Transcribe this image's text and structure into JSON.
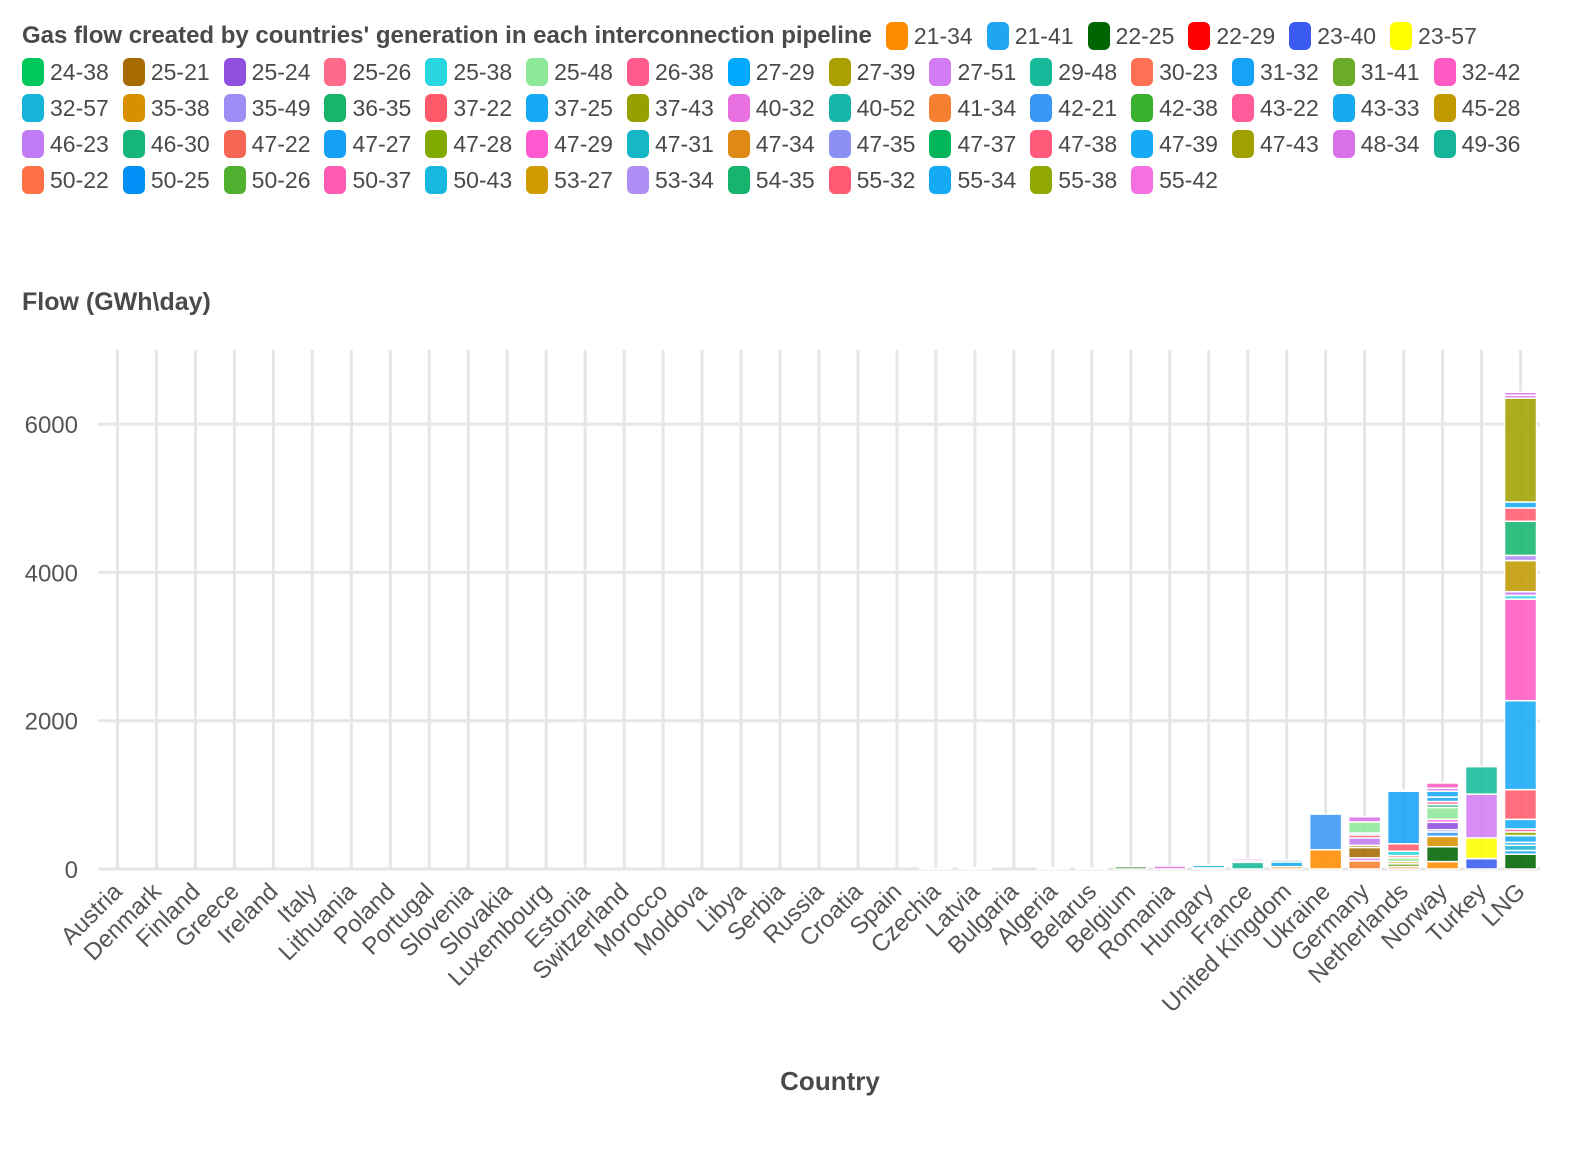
{
  "chart_data": {
    "type": "bar",
    "stacked": true,
    "title": "Gas flow created by countries' generation in each interconnection pipeline",
    "ylabel": "Flow (GWh\\day)",
    "xlabel": "Country",
    "ylim": [
      0,
      7000
    ],
    "yticks": [
      0,
      2000,
      4000,
      6000
    ],
    "grid": true,
    "legend_position": "top",
    "categories": [
      "Austria",
      "Denmark",
      "Finland",
      "Greece",
      "Ireland",
      "Italy",
      "Lithuania",
      "Poland",
      "Portugal",
      "Slovenia",
      "Slovakia",
      "Luxembourg",
      "Estonia",
      "Switzerland",
      "Morocco",
      "Moldova",
      "Libya",
      "Serbia",
      "Russia",
      "Croatia",
      "Spain",
      "Czechia",
      "Latvia",
      "Bulgaria",
      "Algeria",
      "Belarus",
      "Belgium",
      "Romania",
      "Hungary",
      "France",
      "United Kingdom",
      "Ukraine",
      "Germany",
      "Netherlands",
      "Norway",
      "Turkey",
      "LNG"
    ],
    "legend": [
      {
        "name": "21-34",
        "color": "#ff8c00"
      },
      {
        "name": "21-41",
        "color": "#1ea7f0"
      },
      {
        "name": "22-25",
        "color": "#006400"
      },
      {
        "name": "22-29",
        "color": "#ff0000"
      },
      {
        "name": "23-40",
        "color": "#3b5bf0"
      },
      {
        "name": "23-57",
        "color": "#ffff00"
      },
      {
        "name": "24-38",
        "color": "#00c85a"
      },
      {
        "name": "25-21",
        "color": "#a66a00"
      },
      {
        "name": "25-24",
        "color": "#9050e0"
      },
      {
        "name": "25-26",
        "color": "#ff6a8a"
      },
      {
        "name": "25-38",
        "color": "#2ad6e0"
      },
      {
        "name": "25-48",
        "color": "#8ee89a"
      },
      {
        "name": "26-38",
        "color": "#ff5a8c"
      },
      {
        "name": "27-29",
        "color": "#00aaff"
      },
      {
        "name": "27-39",
        "color": "#aaa000"
      },
      {
        "name": "27-51",
        "color": "#d27cf5"
      },
      {
        "name": "29-48",
        "color": "#16b99a"
      },
      {
        "name": "30-23",
        "color": "#ff7054"
      },
      {
        "name": "31-32",
        "color": "#16a3f5"
      },
      {
        "name": "31-41",
        "color": "#6aac2a"
      },
      {
        "name": "32-42",
        "color": "#ff5ac4"
      },
      {
        "name": "32-57",
        "color": "#16b5d8"
      },
      {
        "name": "35-38",
        "color": "#d89000"
      },
      {
        "name": "35-49",
        "color": "#a08cf5"
      },
      {
        "name": "36-35",
        "color": "#16b56a"
      },
      {
        "name": "37-22",
        "color": "#ff5a6a"
      },
      {
        "name": "37-25",
        "color": "#16aaf5"
      },
      {
        "name": "37-43",
        "color": "#98a000"
      },
      {
        "name": "40-32",
        "color": "#e870e0"
      },
      {
        "name": "40-52",
        "color": "#16b5a8"
      },
      {
        "name": "41-34",
        "color": "#f58030"
      },
      {
        "name": "42-21",
        "color": "#3a98f5"
      },
      {
        "name": "42-38",
        "color": "#3ab030"
      },
      {
        "name": "43-22",
        "color": "#ff5a9a"
      },
      {
        "name": "43-33",
        "color": "#16aaf0"
      },
      {
        "name": "45-28",
        "color": "#c09a00"
      },
      {
        "name": "46-23",
        "color": "#c07cf5"
      },
      {
        "name": "46-30",
        "color": "#16b57a"
      },
      {
        "name": "47-22",
        "color": "#f56654"
      },
      {
        "name": "47-27",
        "color": "#16a0f5"
      },
      {
        "name": "47-28",
        "color": "#80aa00"
      },
      {
        "name": "47-29",
        "color": "#ff5ad0"
      },
      {
        "name": "47-31",
        "color": "#16b8c8"
      },
      {
        "name": "47-34",
        "color": "#e08a16"
      },
      {
        "name": "47-35",
        "color": "#8c90f5"
      },
      {
        "name": "47-37",
        "color": "#00b55a"
      },
      {
        "name": "47-38",
        "color": "#ff5a7a"
      },
      {
        "name": "47-39",
        "color": "#16aaf5"
      },
      {
        "name": "47-43",
        "color": "#a0a000"
      },
      {
        "name": "48-34",
        "color": "#d870e8"
      },
      {
        "name": "49-36",
        "color": "#16b59a"
      },
      {
        "name": "50-22",
        "color": "#ff7048"
      },
      {
        "name": "50-25",
        "color": "#0090f5"
      },
      {
        "name": "50-26",
        "color": "#50b030"
      },
      {
        "name": "50-37",
        "color": "#ff5ab4"
      },
      {
        "name": "50-43",
        "color": "#16b8e0"
      },
      {
        "name": "53-27",
        "color": "#d09a00"
      },
      {
        "name": "53-34",
        "color": "#b08cf5"
      },
      {
        "name": "54-35",
        "color": "#16b56e"
      },
      {
        "name": "55-32",
        "color": "#ff5a70"
      },
      {
        "name": "55-34",
        "color": "#16aaf5"
      },
      {
        "name": "55-38",
        "color": "#90a800"
      },
      {
        "name": "55-42",
        "color": "#f570e0"
      }
    ],
    "stacks": [
      [],
      [],
      [],
      [],
      [],
      [],
      [],
      [],
      [],
      [],
      [],
      [],
      [],
      [],
      [],
      [],
      [],
      [],
      [],
      [],
      [],
      [
        {
          "series": "36-35",
          "value": 12
        }
      ],
      [
        {
          "series": "31-41",
          "value": 15
        }
      ],
      [],
      [
        {
          "series": "31-32",
          "value": 18
        }
      ],
      [
        {
          "series": "25-26",
          "value": 12
        }
      ],
      [
        {
          "series": "22-25",
          "value": 30
        }
      ],
      [
        {
          "series": "40-32",
          "value": 40
        }
      ],
      [
        {
          "series": "35-38",
          "value": 15
        },
        {
          "series": "32-57",
          "value": 35
        }
      ],
      [
        {
          "series": "29-48",
          "value": 90
        },
        {
          "series": "47-22",
          "value": 20
        },
        {
          "series": "48-34",
          "value": 25
        }
      ],
      [
        {
          "series": "35-38",
          "value": 30
        },
        {
          "series": "43-33",
          "value": 65
        },
        {
          "series": "47-39",
          "value": 25
        }
      ],
      [
        {
          "series": "21-34",
          "value": 260
        },
        {
          "series": "42-21",
          "value": 480
        }
      ],
      [
        {
          "series": "41-34",
          "value": 110
        },
        {
          "series": "27-51",
          "value": 40
        },
        {
          "series": "25-21",
          "value": 140
        },
        {
          "series": "35-38",
          "value": 30
        },
        {
          "series": "46-23",
          "value": 100
        },
        {
          "series": "55-32",
          "value": 40
        },
        {
          "series": "40-52",
          "value": 25
        },
        {
          "series": "25-48",
          "value": 150
        },
        {
          "series": "48-34",
          "value": 70
        }
      ],
      [
        {
          "series": "41-34",
          "value": 30
        },
        {
          "series": "31-41",
          "value": 40
        },
        {
          "series": "53-27",
          "value": 30
        },
        {
          "series": "25-48",
          "value": 50
        },
        {
          "series": "47-22",
          "value": 30
        },
        {
          "series": "25-38",
          "value": 60
        },
        {
          "series": "37-22",
          "value": 100
        },
        {
          "series": "31-32",
          "value": 710
        },
        {
          "series": "40-32",
          "value": 20
        }
      ],
      [
        {
          "series": "21-34",
          "value": 100
        },
        {
          "series": "22-25",
          "value": 200
        },
        {
          "series": "35-38",
          "value": 140
        },
        {
          "series": "42-21",
          "value": 60
        },
        {
          "series": "35-49",
          "value": 30
        },
        {
          "series": "25-24",
          "value": 100
        },
        {
          "series": "47-29",
          "value": 40
        },
        {
          "series": "25-48",
          "value": 160
        },
        {
          "series": "46-30",
          "value": 40
        },
        {
          "series": "43-22",
          "value": 40
        },
        {
          "series": "47-39",
          "value": 60
        },
        {
          "series": "55-34",
          "value": 80
        },
        {
          "series": "27-51",
          "value": 40
        },
        {
          "series": "32-42",
          "value": 70
        }
      ],
      [
        {
          "series": "23-40",
          "value": 140
        },
        {
          "series": "23-57",
          "value": 280
        },
        {
          "series": "27-51",
          "value": 590
        },
        {
          "series": "29-48",
          "value": 370
        }
      ],
      [
        {
          "series": "22-25",
          "value": 200
        },
        {
          "series": "31-32",
          "value": 50
        },
        {
          "series": "32-57",
          "value": 70
        },
        {
          "series": "43-33",
          "value": 40
        },
        {
          "series": "47-39",
          "value": 90
        },
        {
          "series": "55-38",
          "value": 50
        },
        {
          "series": "43-22",
          "value": 40
        },
        {
          "series": "47-39",
          "value": 130
        },
        {
          "series": "37-22",
          "value": 400
        },
        {
          "series": "37-25",
          "value": 1200
        },
        {
          "series": "32-42",
          "value": 1370
        },
        {
          "series": "25-38",
          "value": 50
        },
        {
          "series": "46-23",
          "value": 50
        },
        {
          "series": "45-28",
          "value": 420
        },
        {
          "series": "53-34",
          "value": 70
        },
        {
          "series": "54-35",
          "value": 460
        },
        {
          "series": "55-32",
          "value": 180
        },
        {
          "series": "43-33",
          "value": 80
        },
        {
          "series": "47-43",
          "value": 1400
        },
        {
          "series": "27-51",
          "value": 40
        },
        {
          "series": "48-34",
          "value": 40
        }
      ]
    ]
  }
}
